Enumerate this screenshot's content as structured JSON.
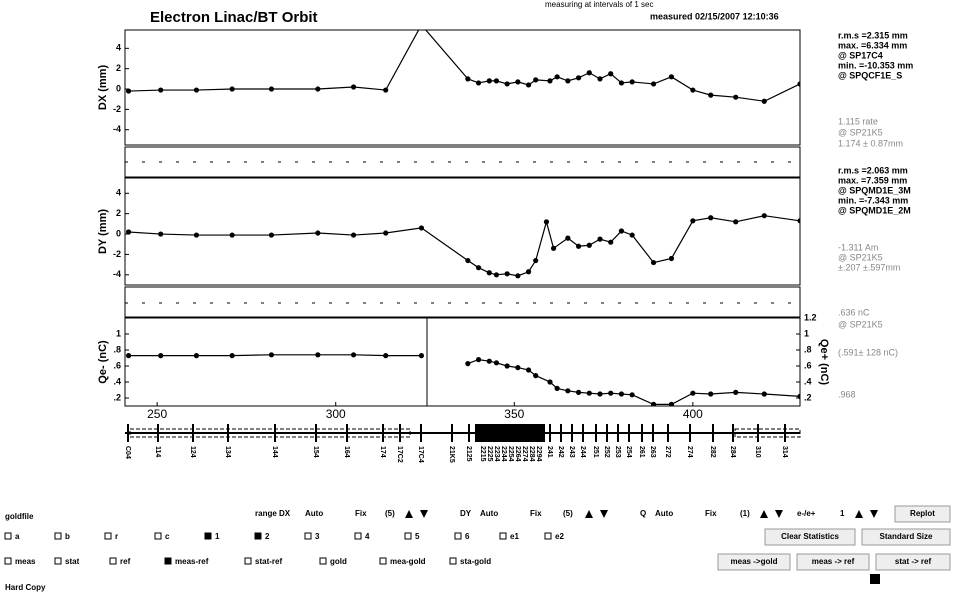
{
  "header": {
    "title": "Electron Linac/BT  Orbit",
    "interval": "measuring at intervals of  1 sec",
    "measured": "measured   02/15/2007 12:10:36"
  },
  "chart_data": [
    {
      "type": "line",
      "ylabel": "DX (mm)",
      "xlim": [
        241,
        430
      ],
      "ylim": [
        -5.5,
        5.8
      ],
      "yticks": [
        -4,
        -2,
        0,
        2,
        4
      ],
      "color": "#000000",
      "x": [
        242,
        251,
        261,
        271,
        282,
        295,
        305,
        314,
        324,
        337,
        340,
        343,
        345,
        348,
        351,
        354,
        356,
        360,
        362,
        365,
        368,
        371,
        374,
        377,
        380,
        383,
        389,
        394,
        400,
        405,
        412,
        420,
        430
      ],
      "values": [
        -0.2,
        -0.1,
        -0.1,
        0,
        0,
        0,
        0.2,
        -0.1,
        6.3,
        1,
        0.6,
        0.8,
        0.8,
        0.5,
        0.7,
        0.4,
        0.9,
        0.8,
        1.2,
        0.8,
        1.1,
        1.6,
        1,
        1.5,
        0.6,
        0.7,
        0.5,
        1.2,
        -0.1,
        -0.6,
        -0.8,
        -1.2,
        0.5
      ]
    },
    {
      "type": "line",
      "ylabel": "DY (mm)",
      "xlim": [
        241,
        430
      ],
      "ylim": [
        -5,
        5.5
      ],
      "yticks": [
        -4,
        -2,
        0,
        2,
        4
      ],
      "color": "#000000",
      "x": [
        242,
        251,
        261,
        271,
        282,
        295,
        305,
        314,
        324,
        337,
        340,
        343,
        345,
        348,
        351,
        354,
        356,
        359,
        361,
        365,
        368,
        371,
        374,
        377,
        380,
        383,
        389,
        394,
        400,
        405,
        412,
        420,
        430
      ],
      "values": [
        0.2,
        0,
        -0.1,
        -0.1,
        -0.1,
        0.1,
        -0.1,
        0.1,
        0.6,
        -2.6,
        -3.3,
        -3.8,
        -4,
        -3.9,
        -4.1,
        -3.7,
        -2.6,
        1.2,
        -1.4,
        -0.4,
        -1.2,
        -1.1,
        -0.5,
        -0.8,
        0.3,
        -0.1,
        -2.8,
        -2.4,
        1.3,
        1.6,
        1.2,
        1.8,
        1.3
      ]
    },
    {
      "type": "line",
      "ylabel": "Qe- (nC)",
      "y2label": "Qe+ (nC)",
      "xlim": [
        241,
        430
      ],
      "ylim": [
        0.1,
        1.2
      ],
      "y2lim": [
        0.1,
        1.2
      ],
      "color": "#000000",
      "yticks": [
        {
          "value": 0.2,
          "label": ".2"
        },
        {
          "value": 0.4,
          "label": ".4"
        },
        {
          "value": 0.6,
          "label": ".6"
        },
        {
          "value": 0.8,
          "label": ".8"
        },
        1
      ],
      "y2ticks": [
        {
          "value": 0.2,
          "label": ".2"
        },
        {
          "value": 0.4,
          "label": ".4"
        },
        {
          "value": 0.6,
          "label": ".6"
        },
        {
          "value": 0.8,
          "label": ".8"
        },
        1,
        1.2
      ],
      "xticks": [
        250,
        300,
        350,
        400
      ],
      "x": [
        242,
        251,
        261,
        271,
        282,
        295,
        305,
        314,
        324,
        330,
        337,
        340,
        343,
        345,
        348,
        351,
        354,
        356,
        360,
        362,
        365,
        368,
        371,
        374,
        377,
        380,
        383,
        389,
        394,
        400,
        405,
        412,
        420,
        430
      ],
      "values": [
        0.73,
        0.73,
        0.73,
        0.73,
        0.74,
        0.74,
        0.74,
        0.73,
        0.73,
        null,
        0.63,
        0.68,
        0.66,
        0.64,
        0.6,
        0.58,
        0.55,
        0.48,
        0.4,
        0.32,
        0.29,
        0.27,
        0.26,
        0.25,
        0.26,
        0.25,
        0.24,
        0.12,
        0.12,
        0.26,
        0.25,
        0.27,
        0.25,
        0.22
      ]
    }
  ],
  "stats": {
    "dx": [
      "r.m.s =2.315 mm",
      "max. =6.334 mm",
      "@ SP17C4",
      "min. =-10.353 mm",
      "@ SPQCF1E_S"
    ],
    "dx_faint": [
      "1.115 rate",
      "@ SP21K5",
      "1.174 ± 0.87mm"
    ],
    "dy": [
      "r.m.s =2.063 mm",
      "max. =7.359 mm",
      "@ SPQMD1E_3M",
      "min. =-7.343 mm",
      "@ SPQMD1E_2M"
    ],
    "dy_faint": [
      "-1.311 Am",
      "@ SP21K5",
      "±.207 ±.597mm"
    ],
    "q": [
      ".636 nC",
      "@ SP21K5",
      "(.591± 128 nC)",
      ".968"
    ]
  },
  "elements": [
    "C04",
    "114",
    "124",
    "134",
    "144",
    "154",
    "164",
    "174",
    "17C2",
    "17C4",
    "21K5",
    "2125",
    "2215",
    "2225",
    "2234",
    "2244",
    "2254",
    "2264",
    "2274",
    "2284",
    "2294",
    "241",
    "242",
    "243",
    "244",
    "251",
    "252",
    "253",
    "254",
    "261",
    "263",
    "272",
    "274",
    "282",
    "284",
    "310",
    "314"
  ],
  "controls": {
    "goldfile": "goldfile",
    "row1": [
      "range DX",
      "Auto",
      "Fix",
      "(5)",
      "DY",
      "Auto",
      "Fix",
      "(5)",
      "Q",
      "Auto",
      "Fix",
      "(1)",
      "e-/e+",
      "1"
    ],
    "replot": "Replot",
    "row2": [
      "a",
      "b",
      "r",
      "c",
      "1",
      "2",
      "3",
      "4",
      "5",
      "6",
      "e1",
      "e2"
    ],
    "row2_buttons": [
      "Clear Statistics",
      "Standard Size"
    ],
    "row3": [
      "meas",
      "stat",
      "ref",
      "meas-ref",
      "stat-ref",
      "gold",
      "mea-gold",
      "sta-gold"
    ],
    "row3_buttons": [
      "meas ->gold",
      "meas -> ref",
      "stat -> ref"
    ],
    "hardcopy": "Hard Copy"
  }
}
